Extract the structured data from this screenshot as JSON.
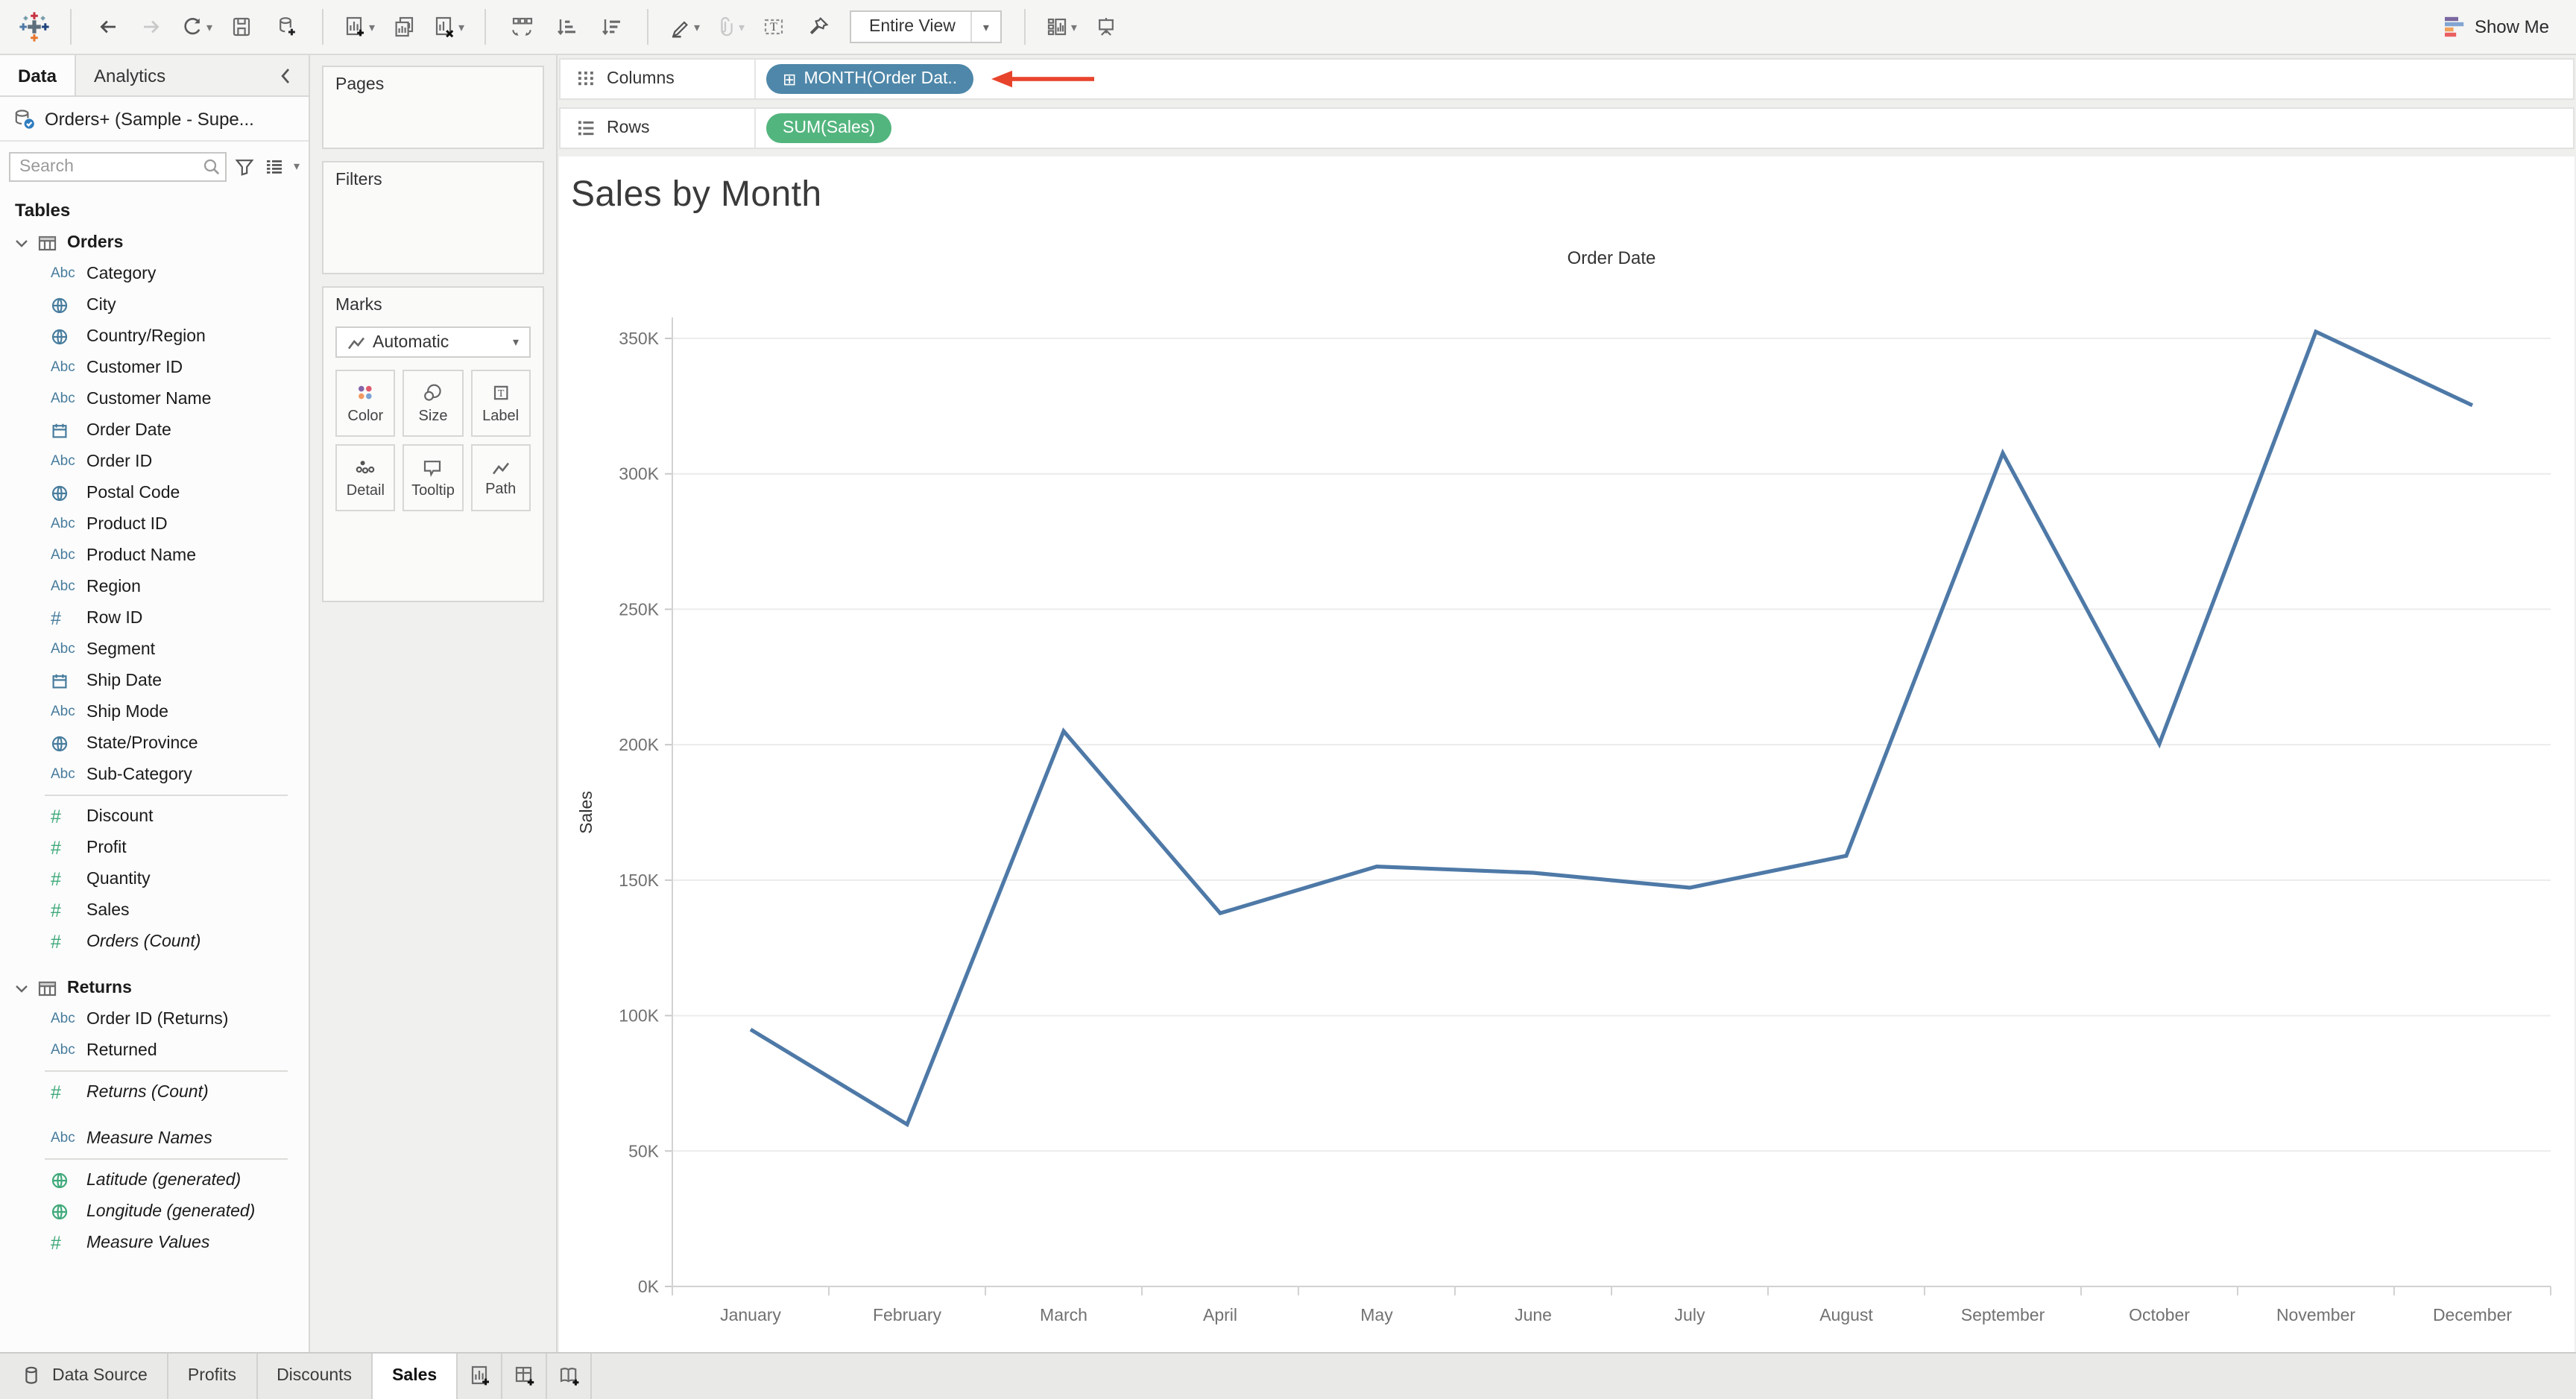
{
  "toolbar": {
    "fit_selector_value": "Entire View",
    "show_me_label": "Show Me",
    "icon_names": [
      "tableau-logo",
      "undo-arrow",
      "redo-arrow",
      "replay",
      "save",
      "add-datasource",
      "new-worksheet",
      "duplicate-sheet",
      "clear-sheet",
      "swap-rows-columns",
      "sort-ascending",
      "sort-descending",
      "highlight-pen",
      "paperclip",
      "show-mark-labels",
      "pin",
      "show-hide-cards",
      "presentation-mode"
    ]
  },
  "sidebar": {
    "tab_data": "Data",
    "tab_analytics": "Analytics",
    "datasource_name": "Orders+ (Sample - Supe...",
    "search_placeholder": "Search",
    "tables_label": "Tables",
    "sections": [
      {
        "type": "table",
        "label": "Orders"
      },
      {
        "type": "field",
        "icon": "abc",
        "label": "Category"
      },
      {
        "type": "field",
        "icon": "globe-blue",
        "label": "City"
      },
      {
        "type": "field",
        "icon": "globe-blue",
        "label": "Country/Region"
      },
      {
        "type": "field",
        "icon": "abc",
        "label": "Customer ID"
      },
      {
        "type": "field",
        "icon": "abc",
        "label": "Customer Name"
      },
      {
        "type": "field",
        "icon": "calendar",
        "label": "Order Date"
      },
      {
        "type": "field",
        "icon": "abc",
        "label": "Order ID"
      },
      {
        "type": "field",
        "icon": "globe-blue",
        "label": "Postal Code"
      },
      {
        "type": "field",
        "icon": "abc",
        "label": "Product ID"
      },
      {
        "type": "field",
        "icon": "abc",
        "label": "Product Name"
      },
      {
        "type": "field",
        "icon": "abc",
        "label": "Region"
      },
      {
        "type": "field",
        "icon": "hash-blue",
        "label": "Row ID"
      },
      {
        "type": "field",
        "icon": "abc",
        "label": "Segment"
      },
      {
        "type": "field",
        "icon": "calendar",
        "label": "Ship Date"
      },
      {
        "type": "field",
        "icon": "abc",
        "label": "Ship Mode"
      },
      {
        "type": "field",
        "icon": "globe-blue",
        "label": "State/Province"
      },
      {
        "type": "field",
        "icon": "abc",
        "label": "Sub-Category"
      },
      {
        "type": "divider"
      },
      {
        "type": "field",
        "icon": "hash-green",
        "label": "Discount"
      },
      {
        "type": "field",
        "icon": "hash-green",
        "label": "Profit"
      },
      {
        "type": "field",
        "icon": "hash-green",
        "label": "Quantity"
      },
      {
        "type": "field",
        "icon": "hash-green",
        "label": "Sales"
      },
      {
        "type": "field",
        "icon": "hash-green",
        "label": "Orders (Count)",
        "italic": true
      },
      {
        "type": "gap"
      },
      {
        "type": "table",
        "label": "Returns"
      },
      {
        "type": "field",
        "icon": "abc",
        "label": "Order ID (Returns)"
      },
      {
        "type": "field",
        "icon": "abc",
        "label": "Returned"
      },
      {
        "type": "divider"
      },
      {
        "type": "field",
        "icon": "hash-green",
        "label": "Returns (Count)",
        "italic": true
      },
      {
        "type": "gap"
      },
      {
        "type": "field",
        "icon": "abc",
        "label": "Measure Names",
        "italic": true
      },
      {
        "type": "divider"
      },
      {
        "type": "field",
        "icon": "globe-green",
        "label": "Latitude (generated)",
        "italic": true
      },
      {
        "type": "field",
        "icon": "globe-green",
        "label": "Longitude (generated)",
        "italic": true
      },
      {
        "type": "field",
        "icon": "hash-green",
        "label": "Measure Values",
        "italic": true
      }
    ]
  },
  "cards": {
    "pages_label": "Pages",
    "filters_label": "Filters",
    "marks": {
      "label": "Marks",
      "mark_type": "Automatic",
      "buttons": [
        {
          "icon": "color-icon",
          "label": "Color"
        },
        {
          "icon": "size-icon",
          "label": "Size"
        },
        {
          "icon": "label-icon",
          "label": "Label"
        },
        {
          "icon": "detail-icon",
          "label": "Detail"
        },
        {
          "icon": "tooltip-icon",
          "label": "Tooltip"
        },
        {
          "icon": "path-icon",
          "label": "Path"
        }
      ]
    }
  },
  "shelves": {
    "columns_label": "Columns",
    "rows_label": "Rows",
    "columns_pill": {
      "text": "MONTH(Order Dat..",
      "icon": "expand-plus",
      "color": "#4e87a9"
    },
    "rows_pill": {
      "text": "SUM(Sales)",
      "color": "#53b57e"
    },
    "annotation_arrow_color": "#e8442c"
  },
  "sheet_title": "Sales by Month",
  "chart_data": {
    "type": "line",
    "title": "Sales by Month",
    "column_header": "Order Date",
    "xlabel": "",
    "ylabel": "Sales",
    "series_name": "SUM(Sales)",
    "categories": [
      "January",
      "February",
      "March",
      "April",
      "May",
      "June",
      "July",
      "August",
      "September",
      "October",
      "November",
      "December"
    ],
    "values": [
      94900,
      59800,
      205000,
      137800,
      155000,
      152700,
      147200,
      159000,
      307650,
      200300,
      352450,
      325300
    ],
    "ylim": [
      0,
      370000
    ],
    "ytick_interval": 50000,
    "ytick_labels": [
      "0K",
      "50K",
      "100K",
      "150K",
      "200K",
      "250K",
      "300K",
      "350K"
    ],
    "grid": true,
    "legend": "none",
    "line_color": "#4e79a7"
  },
  "footer": {
    "datasource_tab": "Data Source",
    "sheet_tabs": [
      "Profits",
      "Discounts",
      "Sales"
    ],
    "active_tab": "Sales",
    "new_icons": [
      "new-worksheet",
      "new-dashboard",
      "new-story"
    ]
  },
  "colors": {
    "pill_blue": "#4e87a9",
    "pill_green": "#53b57e",
    "line_blue": "#4e79a7",
    "arrow_red": "#e8442c",
    "dimension_icon_blue": "#477c9d",
    "measure_icon_green": "#3fa97a"
  }
}
